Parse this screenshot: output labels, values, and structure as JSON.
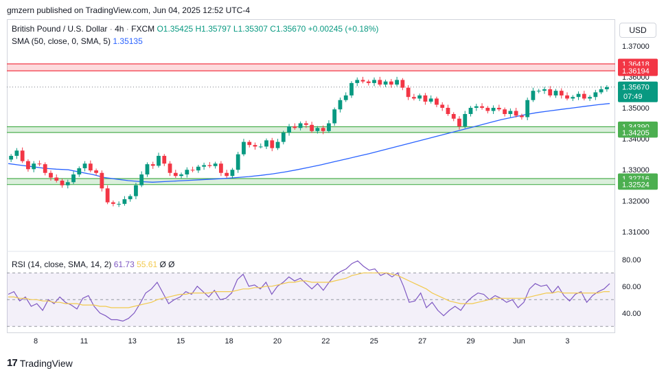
{
  "header": {
    "publisher": "gmzern published on TradingView.com, Jun 04, 2025 12:52 UTC-4"
  },
  "symbol": {
    "name": "British Pound / U.S. Dollar",
    "timeframe": "4h",
    "exchange": "FXCM",
    "ohlc": "O1.35425  H1.35797  L1.35307  C1.35670  +0.00245 (+0.18%)"
  },
  "sma_legend": {
    "label": "SMA (50, close, 0, SMA, 5)",
    "value": "1.35135"
  },
  "rsi_legend": {
    "label": "RSI (14, close, SMA, 14, 2)",
    "rsi": "61.73",
    "ma": "55.61",
    "extra": "Ø  Ø"
  },
  "currency_button": "USD",
  "footer_logo": "TradingView",
  "colors": {
    "up": "#089981",
    "down": "#f23645",
    "sma": "#2962ff",
    "rsi": "#7e57c2",
    "rsi_ma": "#f2c94c",
    "resistance": "#f23645",
    "support": "#4caf50"
  },
  "chart_data": [
    {
      "type": "candlestick",
      "title": "British Pound / U.S. Dollar · 4h · FXCM",
      "ylim": [
        1.305,
        1.3715
      ],
      "y_ticks": [
        "1.37000",
        "1.36000",
        "1.35000",
        "1.34000",
        "1.33000",
        "1.32000",
        "1.31000"
      ],
      "x_ticks": [
        "8",
        "11",
        "13",
        "15",
        "18",
        "20",
        "22",
        "25",
        "27",
        "29",
        "Jun",
        "3"
      ],
      "zones": [
        {
          "kind": "resistance",
          "top": 1.36418,
          "bottom": 1.36194
        },
        {
          "kind": "support",
          "top": 1.3439,
          "bottom": 1.34205
        },
        {
          "kind": "support",
          "top": 1.32716,
          "bottom": 1.32524
        }
      ],
      "price_labels": [
        {
          "text": "1.36418",
          "kind": "resistance"
        },
        {
          "text": "1.36194",
          "kind": "resistance"
        },
        {
          "text": "1.34390",
          "kind": "support"
        },
        {
          "text": "1.34205",
          "kind": "support"
        },
        {
          "text": "1.32716",
          "kind": "support"
        },
        {
          "text": "1.32524",
          "kind": "support"
        },
        {
          "text": "1.35670",
          "kind": "last",
          "sub": "07:49"
        }
      ],
      "last_price": 1.3567,
      "closes": [
        1.3345,
        1.3362,
        1.3328,
        1.3302,
        1.332,
        1.3318,
        1.329,
        1.3275,
        1.3265,
        1.325,
        1.326,
        1.3285,
        1.3305,
        1.332,
        1.3298,
        1.329,
        1.324,
        1.3195,
        1.319,
        1.319,
        1.3205,
        1.3215,
        1.325,
        1.3285,
        1.3318,
        1.3313,
        1.3345,
        1.332,
        1.329,
        1.328,
        1.3285,
        1.33,
        1.3298,
        1.331,
        1.3315,
        1.3312,
        1.332,
        1.329,
        1.328,
        1.33,
        1.335,
        1.339,
        1.338,
        1.3375,
        1.3375,
        1.3395,
        1.337,
        1.339,
        1.342,
        1.344,
        1.3435,
        1.345,
        1.3445,
        1.3425,
        1.3435,
        1.3425,
        1.345,
        1.3495,
        1.3525,
        1.354,
        1.358,
        1.359,
        1.3585,
        1.358,
        1.359,
        1.3575,
        1.3585,
        1.3575,
        1.359,
        1.3565,
        1.3535,
        1.353,
        1.354,
        1.352,
        1.353,
        1.351,
        1.35,
        1.348,
        1.3465,
        1.344,
        1.348,
        1.35,
        1.3505,
        1.35,
        1.349,
        1.35,
        1.3495,
        1.348,
        1.349,
        1.3475,
        1.347,
        1.3525,
        1.3555,
        1.3555,
        1.356,
        1.354,
        1.3555,
        1.354,
        1.353,
        1.3535,
        1.3545,
        1.353,
        1.3535,
        1.355,
        1.356,
        1.3567
      ],
      "sma": [
        1.332,
        1.3315,
        1.331,
        1.3305,
        1.3302,
        1.33,
        1.3292,
        1.3285,
        1.3275,
        1.327,
        1.3265,
        1.3262,
        1.326,
        1.3262,
        1.3264,
        1.3266,
        1.3268,
        1.327,
        1.3272,
        1.3275,
        1.3278,
        1.3282,
        1.3287,
        1.3293,
        1.33,
        1.3308,
        1.3316,
        1.3325,
        1.3334,
        1.3343,
        1.3352,
        1.3362,
        1.3372,
        1.3382,
        1.3392,
        1.3402,
        1.3412,
        1.3422,
        1.3432,
        1.3442,
        1.3452,
        1.3462,
        1.347,
        1.3478,
        1.3485,
        1.349,
        1.3495,
        1.35,
        1.3505,
        1.351,
        1.3514
      ],
      "sma_start_index": 0
    },
    {
      "type": "line",
      "title": "RSI (14, close, SMA, 14, 2)",
      "ylim": [
        25,
        83
      ],
      "y_ticks": [
        "80.00",
        "60.00",
        "40.00"
      ],
      "bands": {
        "upper": 70,
        "middle": 50,
        "lower": 30
      },
      "series": [
        {
          "name": "RSI",
          "values": [
            54,
            56,
            49,
            52,
            45,
            47,
            42,
            50,
            47,
            52,
            48,
            46,
            43,
            51,
            53,
            45,
            40,
            38,
            35,
            35,
            34,
            36,
            40,
            47,
            55,
            58,
            63,
            55,
            47,
            50,
            52,
            56,
            54,
            60,
            56,
            52,
            57,
            50,
            51,
            55,
            65,
            69,
            60,
            61,
            58,
            63,
            54,
            60,
            63,
            67,
            64,
            66,
            62,
            58,
            62,
            57,
            63,
            68,
            71,
            73,
            77,
            79,
            75,
            72,
            73,
            68,
            70,
            67,
            70,
            60,
            48,
            49,
            55,
            44,
            48,
            42,
            38,
            42,
            45,
            42,
            48,
            52,
            55,
            54,
            50,
            53,
            51,
            48,
            50,
            44,
            48,
            58,
            62,
            60,
            61,
            55,
            60,
            53,
            49,
            54,
            56,
            48,
            53,
            56,
            58,
            62
          ]
        },
        {
          "name": "RSI-based MA",
          "values": [
            52,
            52,
            51,
            51,
            50,
            50,
            49,
            49,
            48,
            48,
            47,
            47,
            47,
            46,
            46,
            46,
            45,
            45,
            44,
            44,
            44,
            44,
            45,
            46,
            47,
            48,
            50,
            51,
            52,
            53,
            54,
            54,
            55,
            55,
            55,
            55,
            56,
            56,
            56,
            56,
            57,
            58,
            58,
            59,
            59,
            60,
            60,
            61,
            62,
            63,
            63,
            64,
            64,
            63,
            63,
            63,
            63,
            64,
            65,
            66,
            68,
            69,
            70,
            70,
            70,
            70,
            70,
            69,
            68,
            66,
            64,
            62,
            60,
            58,
            55,
            53,
            51,
            49,
            48,
            47,
            47,
            47,
            48,
            49,
            50,
            51,
            51,
            51,
            51,
            51,
            51,
            52,
            53,
            54,
            55,
            55,
            56,
            55,
            55,
            55,
            55,
            55,
            55,
            55,
            56,
            56
          ]
        }
      ]
    }
  ]
}
